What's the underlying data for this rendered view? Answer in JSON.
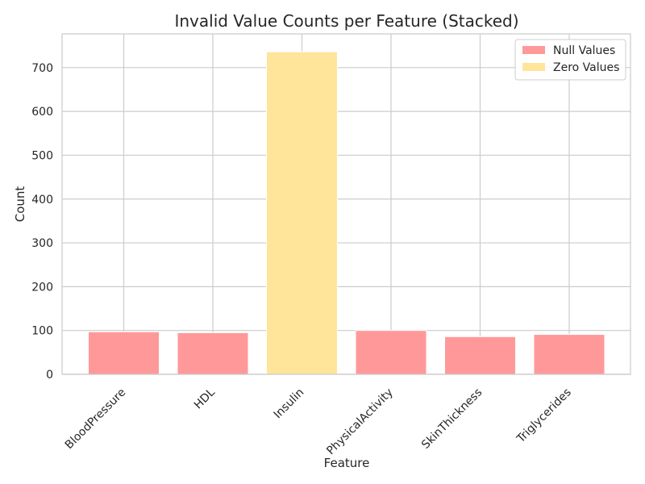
{
  "chart_data": {
    "type": "bar",
    "stacked": true,
    "title": "Invalid Value Counts per Feature (Stacked)",
    "xlabel": "Feature",
    "ylabel": "Count",
    "ylim": [
      0,
      777
    ],
    "yticks": [
      0,
      100,
      200,
      300,
      400,
      500,
      600,
      700
    ],
    "categories": [
      "BloodPressure",
      "HDL",
      "Insulin",
      "PhysicalActivity",
      "SkinThickness",
      "Triglycerides"
    ],
    "series": [
      {
        "name": "Null Values",
        "color": "#ff9999",
        "values": [
          97,
          95,
          0,
          100,
          86,
          91
        ]
      },
      {
        "name": "Zero Values",
        "color": "#ffe599",
        "values": [
          0,
          0,
          736,
          0,
          0,
          0
        ]
      }
    ],
    "grid": true,
    "legend_position": "top-right"
  }
}
